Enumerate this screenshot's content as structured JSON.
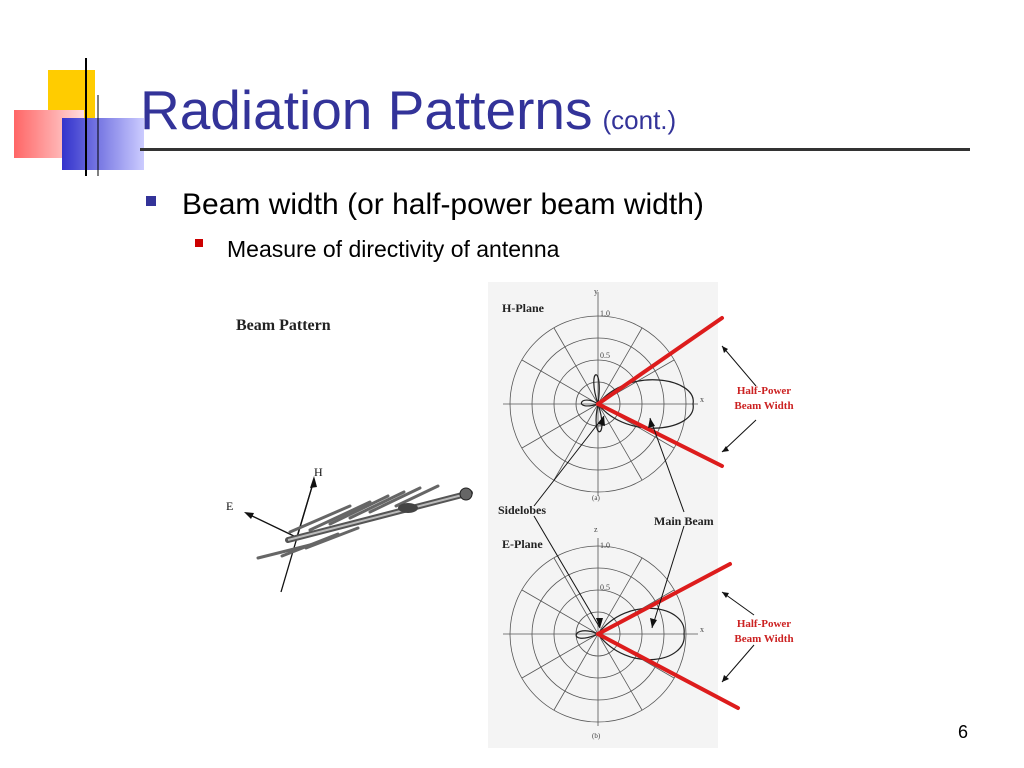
{
  "slide": {
    "title": "Radiation Patterns",
    "title_suffix": "(cont.)",
    "bullet1": "Beam width (or half-power beam width)",
    "bullet2": "Measure of directivity of antenna",
    "page_number": "6"
  },
  "figure": {
    "beam_pattern_label": "Beam Pattern",
    "axis_h": "H",
    "axis_e": "E",
    "h_plane_label": "H-Plane",
    "e_plane_label": "E-Plane",
    "half_power_line1": "Half-Power",
    "half_power_line2": "Beam Width",
    "sidelobes_label": "Sidelobes",
    "main_beam_label": "Main Beam",
    "tick_1_0": "1.0",
    "tick_0_5": "0.5",
    "axis_y": "y",
    "axis_x": "x",
    "axis_z": "z",
    "caption_a": "(a)",
    "caption_b": "(b)",
    "colors": {
      "accent_red": "#dd1c1c",
      "title_blue": "#333399"
    }
  }
}
